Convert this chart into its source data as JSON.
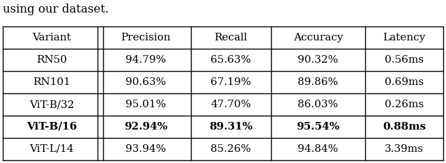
{
  "caption": "using our dataset.",
  "headers": [
    "Variant",
    "Precision",
    "Recall",
    "Accuracy",
    "Latency"
  ],
  "rows": [
    [
      "RN50",
      "94.79%",
      "65.63%",
      "90.32%",
      "0.56ms"
    ],
    [
      "RN101",
      "90.63%",
      "67.19%",
      "89.86%",
      "0.69ms"
    ],
    [
      "ViT-B/32",
      "95.01%",
      "47.70%",
      "86.03%",
      "0.26ms"
    ],
    [
      "ViT-B/16",
      "92.94%",
      "89.31%",
      "95.54%",
      "0.88ms"
    ],
    [
      "ViT-L/14",
      "93.94%",
      "85.26%",
      "94.84%",
      "3.39ms"
    ]
  ],
  "bold_row": 3,
  "header_fontsize": 11,
  "cell_fontsize": 11,
  "caption_fontsize": 12,
  "background_color": "#ffffff",
  "line_color": "#000000"
}
